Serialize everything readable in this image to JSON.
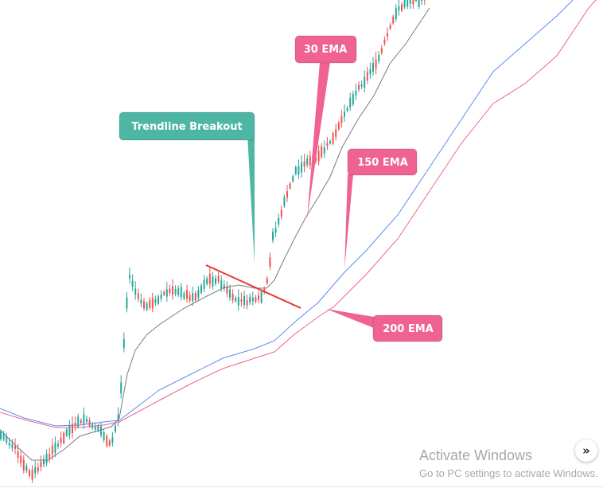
{
  "chart_data": {
    "type": "candlestick",
    "colors": {
      "up": "#26a69a",
      "down": "#ef5350",
      "ema30": "#787b86",
      "ema150": "#5b8def",
      "ema200": "#f06292",
      "trendline": "#e53935",
      "annotation_teal": "#4db6a4",
      "annotation_pink": "#f06292"
    },
    "annotations": [
      {
        "id": "trendline",
        "text": "Trendline Breakout"
      },
      {
        "id": "ema30",
        "text": "30 EMA"
      },
      {
        "id": "ema150",
        "text": "150 EMA"
      },
      {
        "id": "ema200",
        "text": "200 EMA"
      }
    ]
  },
  "watermark": {
    "title": "Activate Windows",
    "subtitle": "Go to PC settings to activate Windows."
  },
  "nav_button": {
    "label": "»"
  }
}
